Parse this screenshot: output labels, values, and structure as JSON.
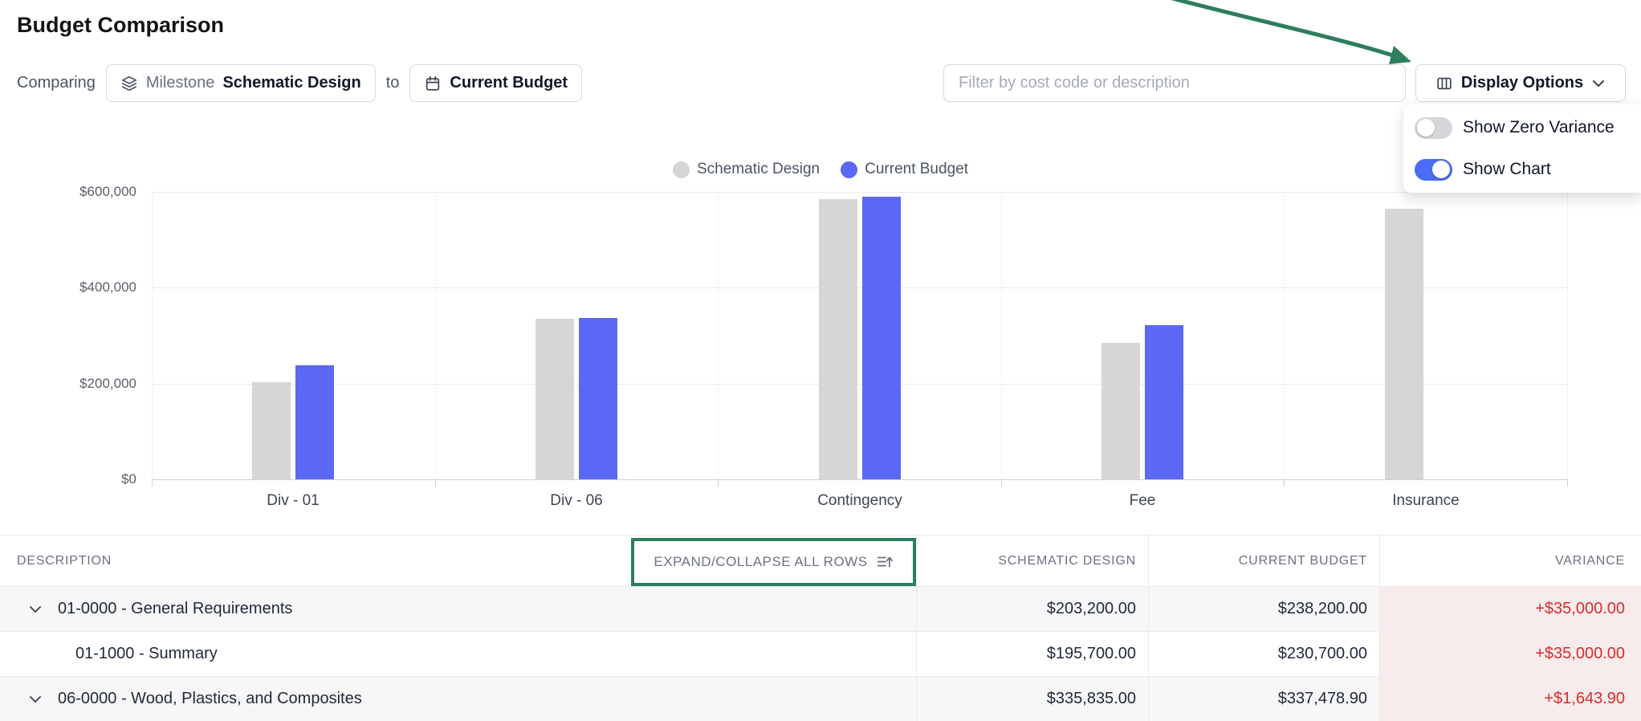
{
  "page": {
    "title": "Budget Comparison"
  },
  "toolbar": {
    "comparing_label": "Comparing",
    "milestone_chip": {
      "prefix": "Milestone",
      "value": "Schematic Design"
    },
    "to_label": "to",
    "budget_chip": {
      "value": "Current Budget"
    },
    "filter_placeholder": "Filter by cost code or description",
    "display_options_label": "Display Options"
  },
  "display_menu": {
    "items": [
      {
        "label": "Show Zero Variance",
        "enabled": false
      },
      {
        "label": "Show Chart",
        "enabled": true
      }
    ]
  },
  "chart_data": {
    "type": "bar",
    "categories": [
      "Div - 01",
      "Div - 06",
      "Contingency",
      "Fee",
      "Insurance"
    ],
    "series": [
      {
        "name": "Schematic Design",
        "color": "#d6d6d6",
        "values": [
          203200,
          335835,
          585000,
          285000,
          565000
        ]
      },
      {
        "name": "Current Budget",
        "color": "#5a68f5",
        "values": [
          238200,
          337478.9,
          590000,
          322000,
          0
        ]
      }
    ],
    "yticks": [
      "$0",
      "$200,000",
      "$400,000",
      "$600,000"
    ],
    "ylim": [
      0,
      600000
    ],
    "grid": true,
    "legend_position": "top"
  },
  "table": {
    "columns": [
      "DESCRIPTION",
      "SCHEMATIC DESIGN",
      "CURRENT BUDGET",
      "VARIANCE"
    ],
    "expand_collapse_label": "EXPAND/COLLAPSE ALL ROWS",
    "rows": [
      {
        "description": "01-0000 - General Requirements",
        "schematic_design": "$203,200.00",
        "current_budget": "$238,200.00",
        "variance": "+$35,000.00",
        "expandable": true,
        "level": 0
      },
      {
        "description": "01-1000 - Summary",
        "schematic_design": "$195,700.00",
        "current_budget": "$230,700.00",
        "variance": "+$35,000.00",
        "expandable": false,
        "level": 1
      },
      {
        "description": "06-0000 - Wood, Plastics, and Composites",
        "schematic_design": "$335,835.00",
        "current_budget": "$337,478.90",
        "variance": "+$1,643.90",
        "expandable": true,
        "level": 0
      }
    ]
  },
  "colors": {
    "annotation_green": "#2e7d5c",
    "variance_red": "#d92b2b",
    "bar_gray": "#d6d6d6",
    "bar_blue": "#5a68f5",
    "toggle_on_blue": "#4a6cf7",
    "variance_cell_bg": "#f8ebeb"
  }
}
